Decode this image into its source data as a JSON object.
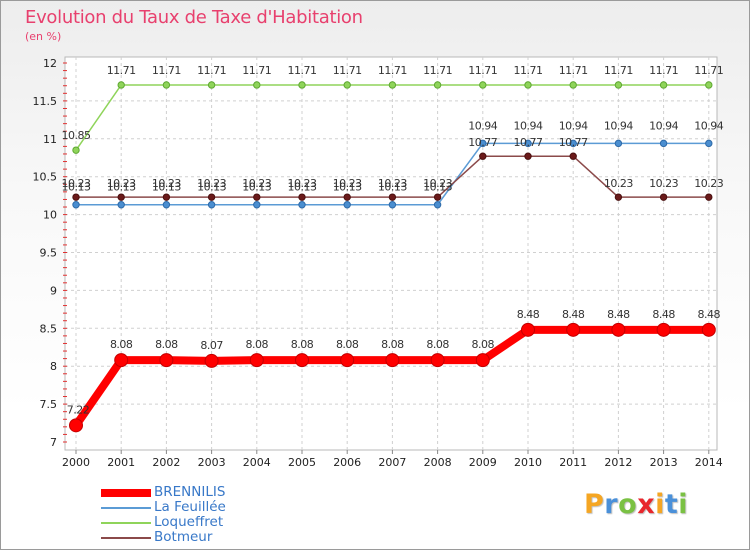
{
  "chart_data": {
    "type": "line",
    "title": "Evolution du Taux de Taxe d'Habitation",
    "ylabel": "(en %)",
    "xlabel": "",
    "ylim": [
      7,
      12
    ],
    "yticks": [
      "7",
      "7.5",
      "8",
      "8.5",
      "9",
      "9.5",
      "10",
      "10.5",
      "11",
      "11.5",
      "12"
    ],
    "categories": [
      "2000",
      "2001",
      "2002",
      "2003",
      "2004",
      "2005",
      "2006",
      "2007",
      "2008",
      "2009",
      "2010",
      "2011",
      "2012",
      "2013",
      "2014"
    ],
    "series": [
      {
        "name": "BRENNILIS",
        "color": "#ff0000",
        "values": [
          7.22,
          8.08,
          8.08,
          8.07,
          8.08,
          8.08,
          8.08,
          8.08,
          8.08,
          8.08,
          8.48,
          8.48,
          8.48,
          8.48,
          8.48
        ],
        "labels": [
          "7.22",
          "8.08",
          "8.08",
          "8.07",
          "8.08",
          "8.08",
          "8.08",
          "8.08",
          "8.08",
          "8.08",
          "8.48",
          "8.48",
          "8.48",
          "8.48",
          "8.48"
        ]
      },
      {
        "name": "La Feuillée",
        "color": "#5b9bd5",
        "values": [
          10.13,
          10.13,
          10.13,
          10.13,
          10.13,
          10.13,
          10.13,
          10.13,
          10.13,
          10.94,
          10.94,
          10.94,
          10.94,
          10.94,
          10.94
        ],
        "labels": [
          "10.13",
          "10.13",
          "10.13",
          "10.13",
          "10.13",
          "10.13",
          "10.13",
          "10.13",
          "10.13",
          "10.94",
          "10.94",
          "10.94",
          "10.94",
          "10.94",
          "10.94"
        ]
      },
      {
        "name": "Loqueffret",
        "color": "#8fd45a",
        "values": [
          10.85,
          11.71,
          11.71,
          11.71,
          11.71,
          11.71,
          11.71,
          11.71,
          11.71,
          11.71,
          11.71,
          11.71,
          11.71,
          11.71,
          11.71
        ],
        "labels": [
          "10.85",
          "11.71",
          "11.71",
          "11.71",
          "11.71",
          "11.71",
          "11.71",
          "11.71",
          "11.71",
          "11.71",
          "11.71",
          "11.71",
          "11.71",
          "11.71",
          "11.71"
        ]
      },
      {
        "name": "Botmeur",
        "color": "#8b4a4a",
        "values": [
          10.23,
          10.23,
          10.23,
          10.23,
          10.23,
          10.23,
          10.23,
          10.23,
          10.23,
          10.77,
          10.77,
          10.77,
          10.23,
          10.23,
          10.23
        ],
        "labels": [
          "10.23",
          "10.23",
          "10.23",
          "10.23",
          "10.23",
          "10.23",
          "10.23",
          "10.23",
          "10.23",
          "10.77",
          "10.77",
          "10.77",
          "10.23",
          "10.23",
          "10.23"
        ]
      }
    ]
  },
  "logo": {
    "text": "Proxiti",
    "letters": [
      "P",
      "r",
      "o",
      "x",
      "i",
      "t",
      "i"
    ],
    "colors": [
      "#f5a623",
      "#4a90d9",
      "#7ac143",
      "#e8262c",
      "#f5a623",
      "#4a90d9",
      "#7ac143"
    ]
  }
}
